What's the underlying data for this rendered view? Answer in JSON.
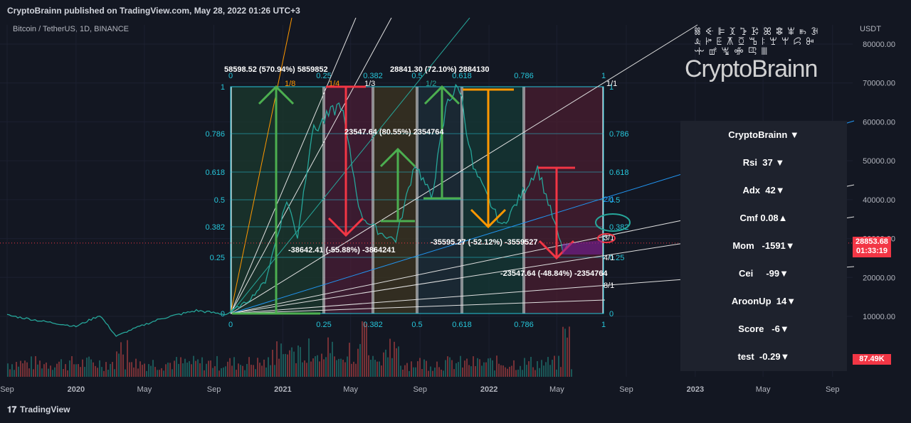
{
  "header": {
    "published": "CryptoBrainn published on TradingView.com, May 28, 2022 01:26 UTC+3",
    "symbol": "Bitcoin / TetherUS, 1D, BINANCE",
    "footer_brand": "TradingView"
  },
  "colors": {
    "bg": "#131722",
    "up": "#26a69a",
    "down": "#ef5350",
    "price_tag": "#f23645",
    "fib": "#26c6da",
    "green": "#4caf50",
    "red": "#f23645",
    "orange": "#ff9800"
  },
  "price_tag": {
    "price": "28853.68",
    "countdown": "01:33:19"
  },
  "volume_tag": "87.49K",
  "watermark": "CryptoBrainn",
  "watermark_glyphs": "ꗤꔾꕞꘉꕲꗣꕤꗵꕾꖳꘂꕋꔶꗍꕧꗞꕰꖎꘃꕚꗱꔻꗻꕡꖖꗂꕓꘈ",
  "indicator_panel": {
    "title": "CryptoBrainn ▼",
    "rows": [
      {
        "label": "Rsi",
        "value": "37 ▼"
      },
      {
        "label": "Adx",
        "value": "42▼"
      },
      {
        "label": "Cmf",
        "value": "0.08▲"
      },
      {
        "label": "Mom",
        "value": "-1591▼"
      },
      {
        "label": "Cei",
        "value": "-99▼"
      },
      {
        "label": "AroonUp",
        "value": "14▼"
      },
      {
        "label": "Score",
        "value": "-6▼"
      },
      {
        "label": "test",
        "value": "-0.29▼"
      }
    ]
  },
  "chart_data": {
    "type": "line",
    "title": "Bitcoin / TetherUS, 1D, BINANCE",
    "y_axis_title": "USDT",
    "y_ticks": [
      10000,
      20000,
      30000,
      40000,
      50000,
      60000,
      70000,
      80000
    ],
    "y_tick_labels": [
      "10000.00",
      "20000.00",
      "30000.00",
      "40000.00",
      "50000.00",
      "60000.00",
      "70000.00",
      "80000.00"
    ],
    "ylim": [
      3000,
      85000
    ],
    "x_tick_labels": [
      "Sep",
      "2020",
      "May",
      "Sep",
      "2021",
      "May",
      "Sep",
      "2022",
      "May",
      "Sep",
      "2023",
      "May",
      "Sep"
    ],
    "x_ticks": [
      "2019-09-01",
      "2020-01-01",
      "2020-05-01",
      "2020-09-01",
      "2021-01-01",
      "2021-05-01",
      "2021-09-01",
      "2022-01-01",
      "2022-05-01",
      "2022-09-01",
      "2023-01-01",
      "2023-05-01",
      "2023-09-01"
    ],
    "series": [
      {
        "values": [
          [
            "2019-09-01",
            10300
          ],
          [
            "2019-11-01",
            8800
          ],
          [
            "2020-01-01",
            7400
          ],
          [
            "2020-02-12",
            10300
          ],
          [
            "2020-03-12",
            4900
          ],
          [
            "2020-04-15",
            7000
          ],
          [
            "2020-06-01",
            9500
          ],
          [
            "2020-08-01",
            11500
          ],
          [
            "2020-09-23",
            10500
          ],
          [
            "2020-11-01",
            14000
          ],
          [
            "2020-12-01",
            19000
          ],
          [
            "2021-01-08",
            40000
          ],
          [
            "2021-01-27",
            30500
          ],
          [
            "2021-02-21",
            57000
          ],
          [
            "2021-03-12",
            60000
          ],
          [
            "2021-04-14",
            64700
          ],
          [
            "2021-05-19",
            36000
          ],
          [
            "2021-06-22",
            31500
          ],
          [
            "2021-07-20",
            29600
          ],
          [
            "2021-08-23",
            49500
          ],
          [
            "2021-09-21",
            40500
          ],
          [
            "2021-10-20",
            66000
          ],
          [
            "2021-11-10",
            69000
          ],
          [
            "2021-12-04",
            48000
          ],
          [
            "2022-01-24",
            33000
          ],
          [
            "2022-03-28",
            48200
          ],
          [
            "2022-05-12",
            26700
          ],
          [
            "2022-05-27",
            28853.68
          ]
        ]
      }
    ],
    "fib_levels": [
      "0",
      "0.25",
      "0.382",
      "0.5",
      "0.618",
      "0.786",
      "1"
    ],
    "annotations": [
      "58598.52 (570.94%) 5859852",
      "28841.30 (72.10%) 2884130",
      "23547.64 (80.55%) 2354764",
      "-38642.41 (-55.88%) -3864241",
      "-35595.27 (-52.12%) -3559527",
      "-23547.64 (-48.84%) -2354764"
    ],
    "gann_labels": [
      "1/8",
      "1/4",
      "1/3",
      "1/2",
      "1/1",
      "2/1",
      "3/1",
      "4/1",
      "8/1"
    ],
    "grid": true
  }
}
